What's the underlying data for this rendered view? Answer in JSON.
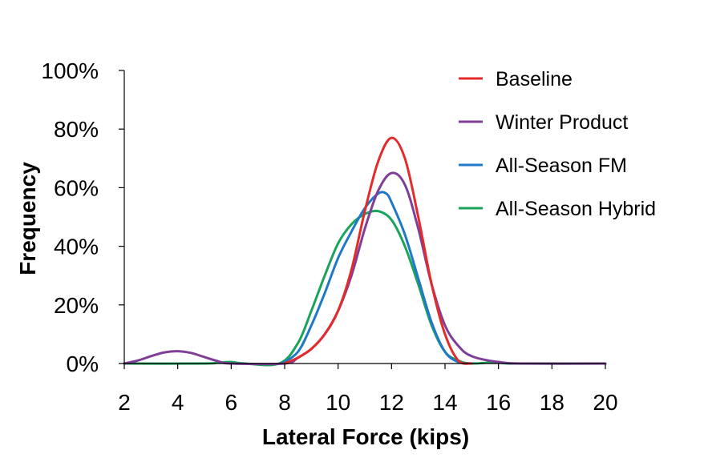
{
  "chart_data": {
    "type": "line",
    "title": "",
    "xlabel": "Lateral Force (kips)",
    "ylabel": "Frequency",
    "xlim": [
      2,
      20
    ],
    "ylim": [
      0,
      100
    ],
    "xticks": [
      "2",
      "4",
      "6",
      "8",
      "10",
      "12",
      "14",
      "16",
      "18",
      "20"
    ],
    "yticks": [
      "0%",
      "20%",
      "40%",
      "60%",
      "80%",
      "100%"
    ],
    "grid": false,
    "legend_position": "top-right",
    "series": [
      {
        "name": "Baseline",
        "color": "#e32b2b",
        "points": [
          [
            8,
            0
          ],
          [
            8.5,
            2
          ],
          [
            9,
            5
          ],
          [
            9.5,
            10
          ],
          [
            10,
            18
          ],
          [
            10.5,
            32
          ],
          [
            11,
            52
          ],
          [
            11.5,
            69
          ],
          [
            12,
            77
          ],
          [
            12.5,
            70
          ],
          [
            13,
            50
          ],
          [
            13.5,
            27
          ],
          [
            14,
            10
          ],
          [
            14.5,
            1
          ],
          [
            15,
            0
          ]
        ]
      },
      {
        "name": "Winter Product",
        "color": "#7f3f98",
        "points": [
          [
            2,
            0
          ],
          [
            2.5,
            1
          ],
          [
            3,
            2.5
          ],
          [
            3.5,
            3.8
          ],
          [
            4,
            4.2
          ],
          [
            4.5,
            3.6
          ],
          [
            5,
            2.2
          ],
          [
            5.5,
            0.8
          ],
          [
            6,
            0
          ],
          [
            8,
            0
          ],
          [
            8.5,
            2
          ],
          [
            9,
            5
          ],
          [
            9.5,
            10
          ],
          [
            10,
            18
          ],
          [
            10.5,
            30
          ],
          [
            11,
            46
          ],
          [
            11.5,
            59
          ],
          [
            12,
            65
          ],
          [
            12.5,
            61
          ],
          [
            13,
            46
          ],
          [
            13.5,
            27
          ],
          [
            14,
            13
          ],
          [
            14.5,
            6
          ],
          [
            15,
            2.5
          ],
          [
            16,
            0.5
          ],
          [
            17,
            0
          ],
          [
            20,
            0
          ]
        ]
      },
      {
        "name": "All-Season FM",
        "color": "#1f78c8",
        "points": [
          [
            7.9,
            0
          ],
          [
            8.5,
            4
          ],
          [
            9,
            13
          ],
          [
            9.5,
            24
          ],
          [
            10,
            36
          ],
          [
            10.5,
            45
          ],
          [
            11,
            53
          ],
          [
            11.5,
            58
          ],
          [
            11.8,
            58
          ],
          [
            12,
            55
          ],
          [
            12.5,
            44
          ],
          [
            13,
            29
          ],
          [
            13.5,
            14
          ],
          [
            14,
            4
          ],
          [
            14.5,
            0.5
          ],
          [
            15,
            0
          ]
        ]
      },
      {
        "name": "All-Season Hybrid",
        "color": "#1aa35a",
        "points": [
          [
            2,
            0
          ],
          [
            5,
            0
          ],
          [
            5.5,
            0.3
          ],
          [
            6,
            0.5
          ],
          [
            6.5,
            0
          ],
          [
            7.8,
            0
          ],
          [
            8.5,
            7
          ],
          [
            9,
            18
          ],
          [
            9.5,
            30
          ],
          [
            10,
            41
          ],
          [
            10.5,
            47.5
          ],
          [
            11,
            51
          ],
          [
            11.5,
            52
          ],
          [
            12,
            49
          ],
          [
            12.5,
            40
          ],
          [
            13,
            27
          ],
          [
            13.5,
            13
          ],
          [
            14,
            4
          ],
          [
            14.5,
            1
          ],
          [
            15,
            0
          ],
          [
            16,
            0.5
          ],
          [
            16.5,
            0
          ],
          [
            20,
            0
          ]
        ]
      }
    ]
  }
}
